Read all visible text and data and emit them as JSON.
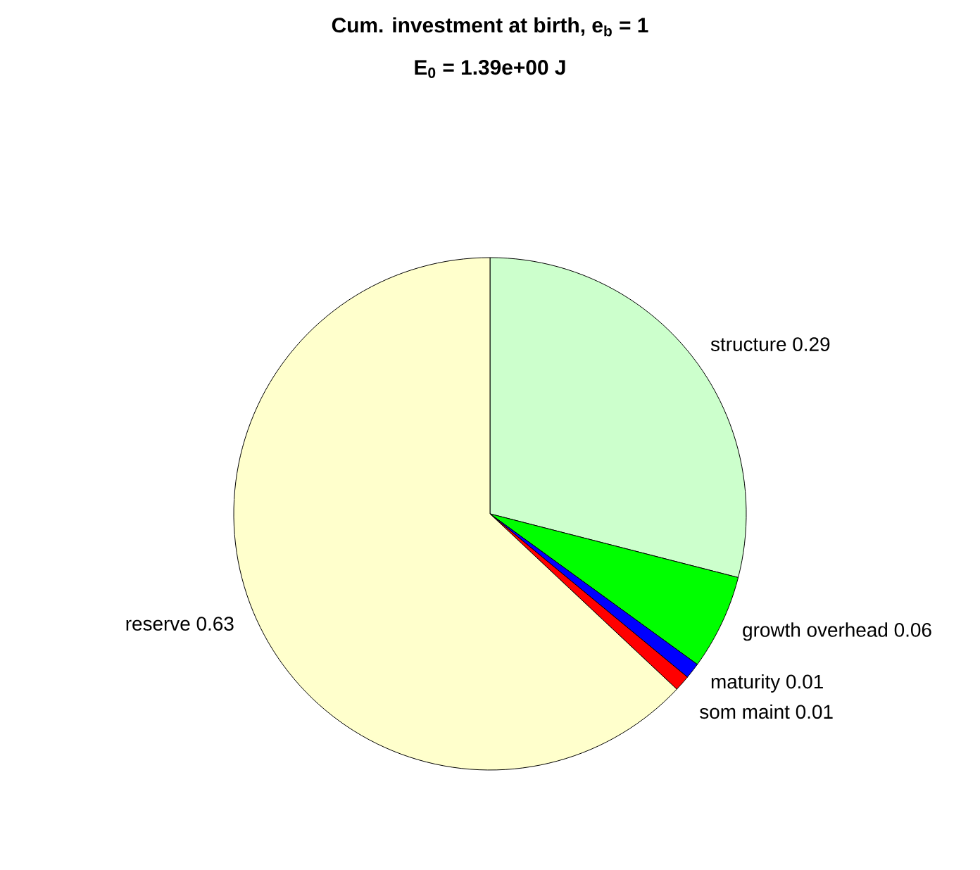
{
  "chart_data": {
    "type": "pie",
    "title": "Cum. investment at birth, e$_{b}$ = 1",
    "subtitle": "E$_{0}$ = 1.39e+00 J",
    "categories": [
      "structure",
      "growth overhead",
      "maturity",
      "som maint",
      "reserve"
    ],
    "values": [
      0.29,
      0.06,
      0.01,
      0.01,
      0.63
    ],
    "colors": [
      "#ccffcc",
      "#00ff00",
      "#0000ff",
      "#ff0000",
      "#ffffcc"
    ],
    "data_labels": true,
    "legend": false
  }
}
